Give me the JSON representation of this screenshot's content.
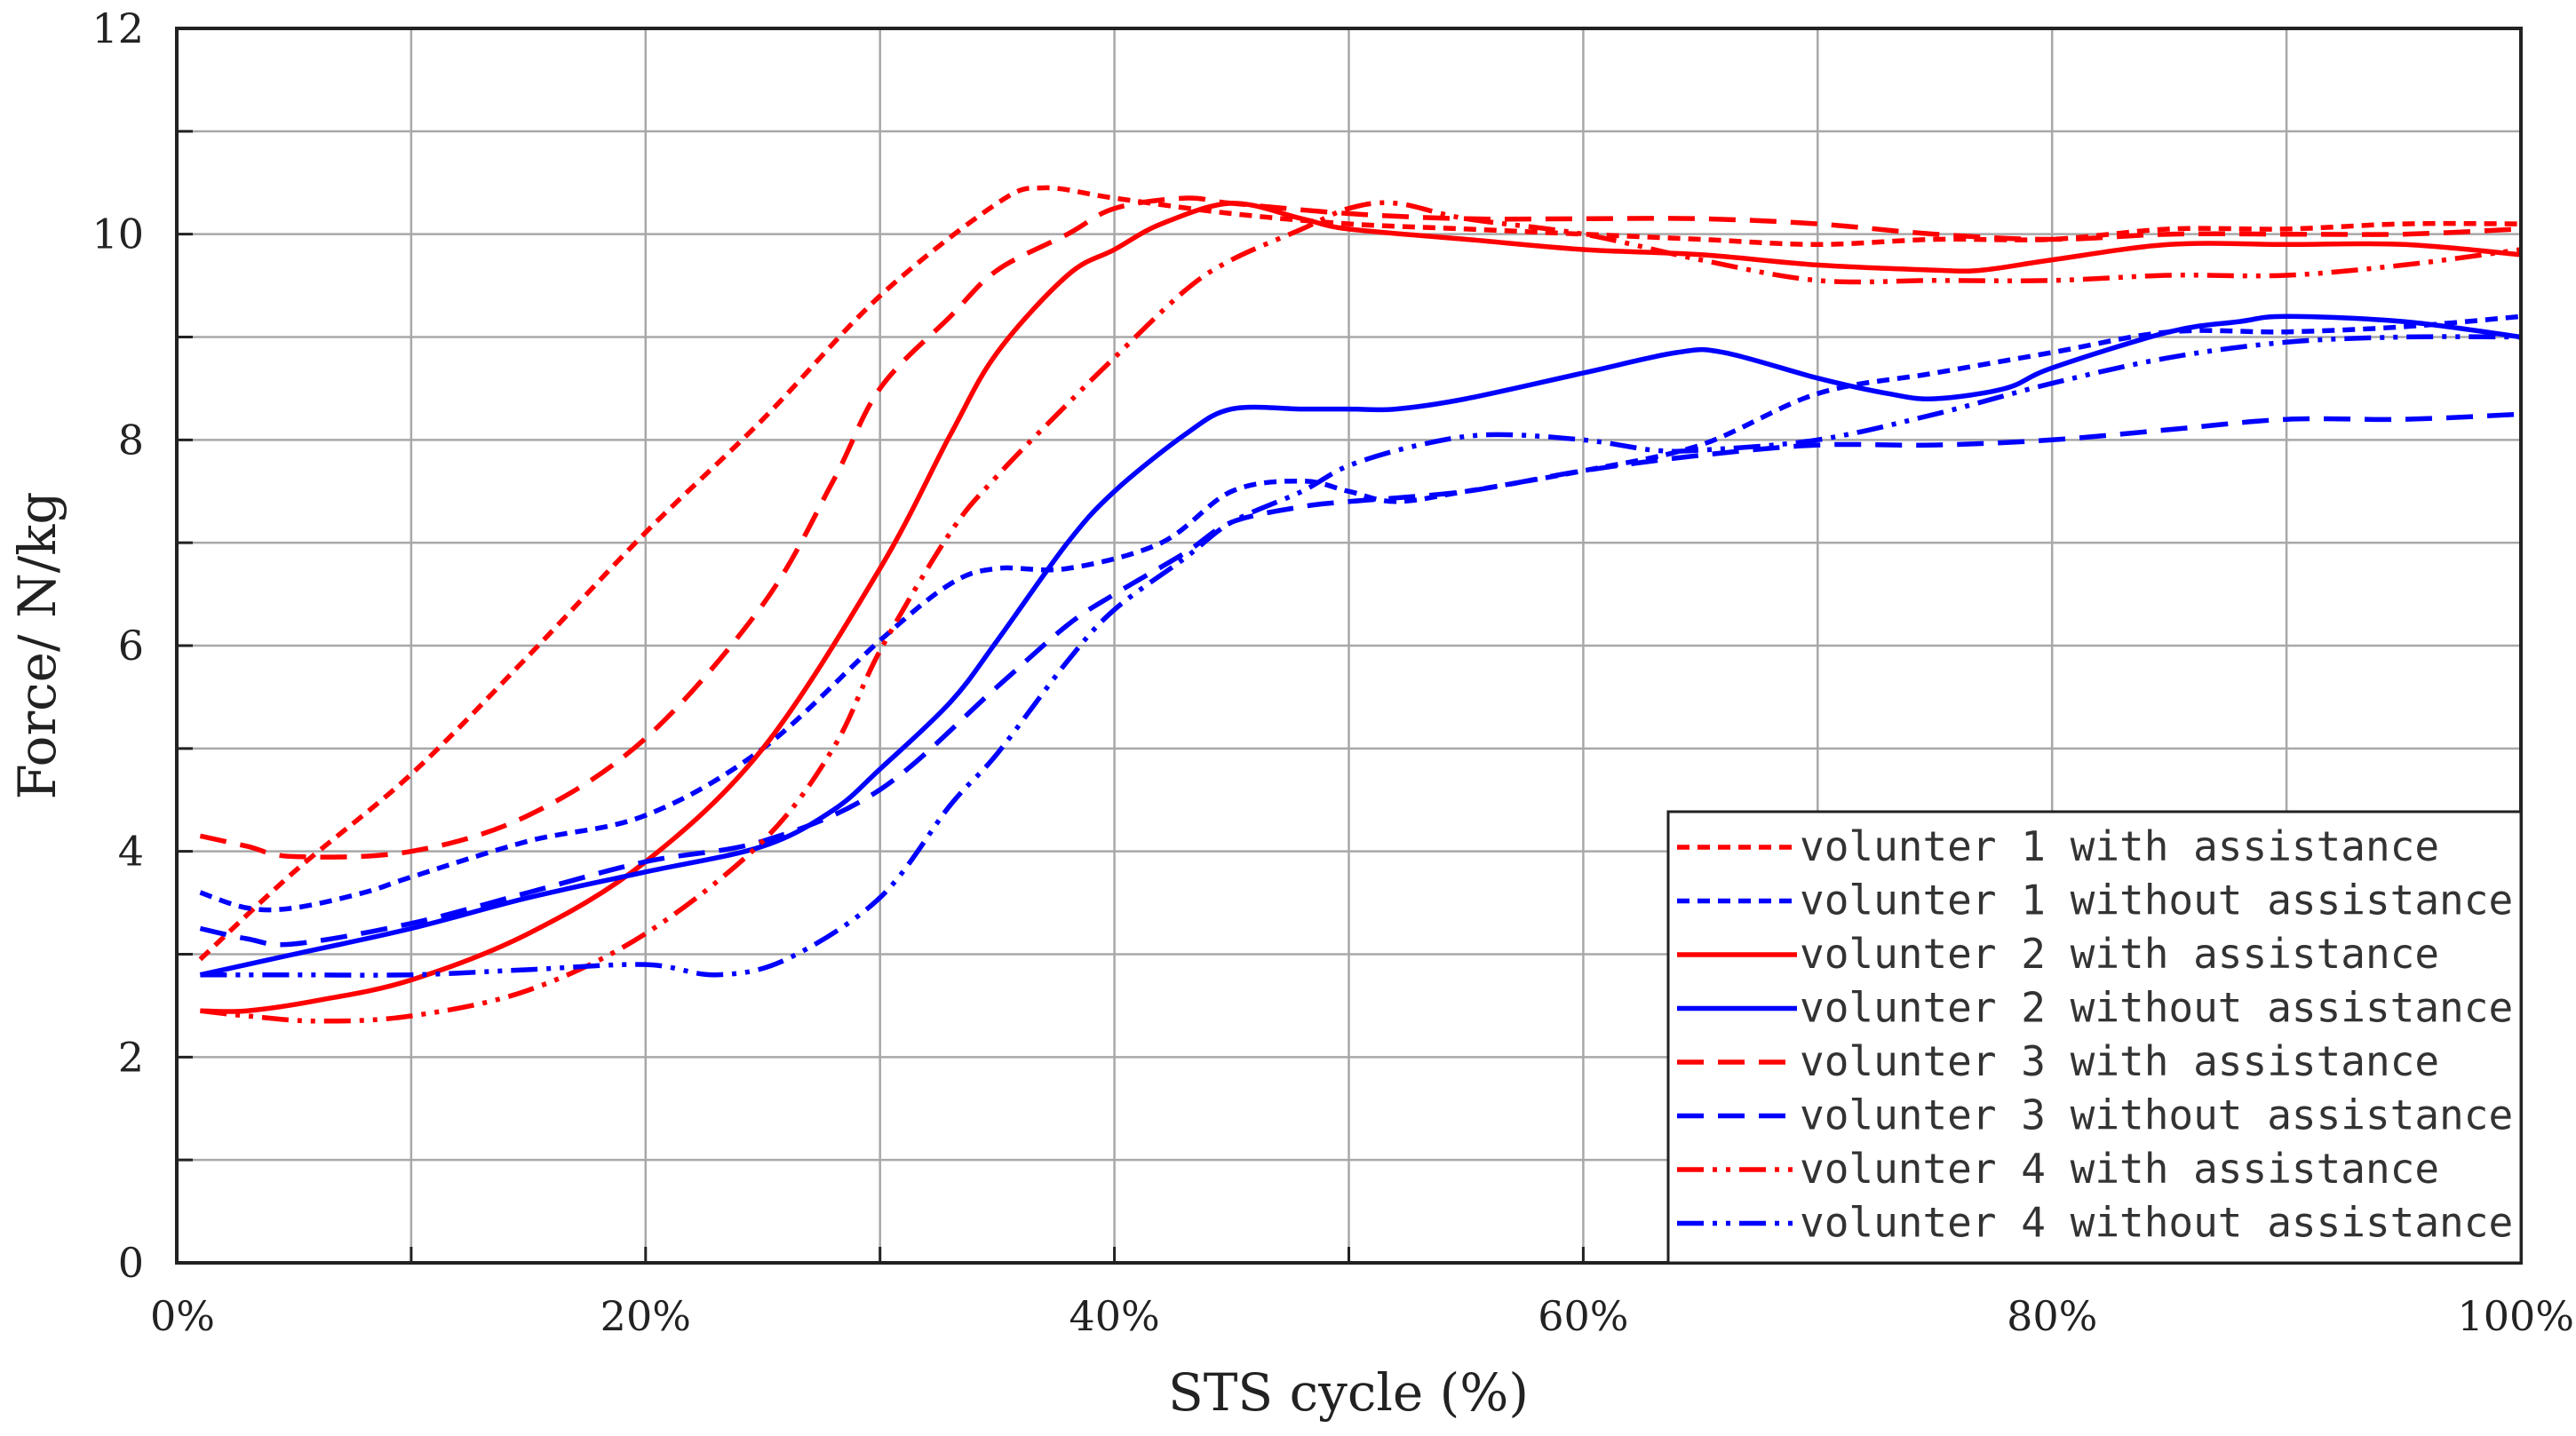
{
  "chart_data": {
    "type": "line",
    "title": "",
    "xlabel": "STS cycle (%)",
    "ylabel": "Force/ N/kg",
    "xlim": [
      0,
      100
    ],
    "ylim": [
      0,
      12
    ],
    "x_ticks": [
      "0%",
      "20%",
      "40%",
      "60%",
      "80%",
      "100%"
    ],
    "x_tick_values": [
      0,
      20,
      40,
      60,
      80,
      100
    ],
    "y_ticks": [
      "0",
      "2",
      "4",
      "6",
      "8",
      "10",
      "12"
    ],
    "y_tick_values": [
      0,
      2,
      4,
      6,
      8,
      10,
      12
    ],
    "grid": true,
    "legend_position": "bottom-right",
    "series": [
      {
        "name": "volunter 1 with assistance",
        "color": "#ff0000",
        "style": "short-dash",
        "points": [
          [
            1,
            2.95
          ],
          [
            5,
            3.8
          ],
          [
            10,
            4.75
          ],
          [
            15,
            5.9
          ],
          [
            20,
            7.1
          ],
          [
            25,
            8.2
          ],
          [
            30,
            9.4
          ],
          [
            35,
            10.3
          ],
          [
            37,
            10.45
          ],
          [
            40,
            10.35
          ],
          [
            45,
            10.2
          ],
          [
            50,
            10.1
          ],
          [
            55,
            10.05
          ],
          [
            60,
            10.0
          ],
          [
            65,
            9.95
          ],
          [
            70,
            9.9
          ],
          [
            75,
            9.95
          ],
          [
            80,
            9.95
          ],
          [
            85,
            10.05
          ],
          [
            90,
            10.05
          ],
          [
            95,
            10.1
          ],
          [
            100,
            10.1
          ]
        ]
      },
      {
        "name": "volunter 1 without assistance",
        "color": "#0000ff",
        "style": "short-dash",
        "points": [
          [
            1,
            3.6
          ],
          [
            3,
            3.45
          ],
          [
            5,
            3.45
          ],
          [
            8,
            3.6
          ],
          [
            10,
            3.75
          ],
          [
            15,
            4.1
          ],
          [
            20,
            4.35
          ],
          [
            25,
            5.0
          ],
          [
            30,
            6.05
          ],
          [
            33,
            6.6
          ],
          [
            35,
            6.75
          ],
          [
            38,
            6.75
          ],
          [
            42,
            7.0
          ],
          [
            45,
            7.5
          ],
          [
            48,
            7.6
          ],
          [
            50,
            7.5
          ],
          [
            52,
            7.4
          ],
          [
            55,
            7.5
          ],
          [
            60,
            7.7
          ],
          [
            65,
            7.95
          ],
          [
            70,
            8.45
          ],
          [
            75,
            8.65
          ],
          [
            80,
            8.85
          ],
          [
            85,
            9.05
          ],
          [
            90,
            9.05
          ],
          [
            95,
            9.1
          ],
          [
            100,
            9.2
          ]
        ]
      },
      {
        "name": "volunter 2 with assistance",
        "color": "#ff0000",
        "style": "solid",
        "points": [
          [
            1,
            2.45
          ],
          [
            3,
            2.45
          ],
          [
            6,
            2.55
          ],
          [
            10,
            2.75
          ],
          [
            15,
            3.2
          ],
          [
            20,
            3.9
          ],
          [
            25,
            5.0
          ],
          [
            30,
            6.75
          ],
          [
            33,
            8.05
          ],
          [
            35,
            8.85
          ],
          [
            38,
            9.6
          ],
          [
            40,
            9.85
          ],
          [
            42,
            10.1
          ],
          [
            45,
            10.3
          ],
          [
            48,
            10.15
          ],
          [
            50,
            10.05
          ],
          [
            55,
            9.95
          ],
          [
            60,
            9.85
          ],
          [
            65,
            9.8
          ],
          [
            70,
            9.7
          ],
          [
            75,
            9.65
          ],
          [
            77,
            9.65
          ],
          [
            80,
            9.75
          ],
          [
            85,
            9.9
          ],
          [
            90,
            9.9
          ],
          [
            95,
            9.9
          ],
          [
            100,
            9.8
          ]
        ]
      },
      {
        "name": "volunter 2 without assistance",
        "color": "#0000ff",
        "style": "solid",
        "points": [
          [
            1,
            2.8
          ],
          [
            5,
            3.0
          ],
          [
            10,
            3.25
          ],
          [
            15,
            3.55
          ],
          [
            20,
            3.8
          ],
          [
            25,
            4.05
          ],
          [
            28,
            4.4
          ],
          [
            30,
            4.8
          ],
          [
            33,
            5.45
          ],
          [
            35,
            6.05
          ],
          [
            38,
            7.0
          ],
          [
            40,
            7.5
          ],
          [
            43,
            8.05
          ],
          [
            45,
            8.3
          ],
          [
            48,
            8.3
          ],
          [
            50,
            8.3
          ],
          [
            52,
            8.3
          ],
          [
            55,
            8.4
          ],
          [
            60,
            8.65
          ],
          [
            64,
            8.85
          ],
          [
            66,
            8.85
          ],
          [
            70,
            8.6
          ],
          [
            73,
            8.45
          ],
          [
            75,
            8.4
          ],
          [
            78,
            8.5
          ],
          [
            80,
            8.7
          ],
          [
            85,
            9.05
          ],
          [
            88,
            9.15
          ],
          [
            90,
            9.2
          ],
          [
            95,
            9.15
          ],
          [
            100,
            9.0
          ]
        ]
      },
      {
        "name": "volunter 3 with assistance",
        "color": "#ff0000",
        "style": "long-dash",
        "points": [
          [
            1,
            4.15
          ],
          [
            3,
            4.05
          ],
          [
            5,
            3.95
          ],
          [
            10,
            4.0
          ],
          [
            15,
            4.35
          ],
          [
            20,
            5.1
          ],
          [
            25,
            6.4
          ],
          [
            28,
            7.6
          ],
          [
            30,
            8.5
          ],
          [
            33,
            9.2
          ],
          [
            35,
            9.65
          ],
          [
            38,
            10.0
          ],
          [
            40,
            10.25
          ],
          [
            43,
            10.35
          ],
          [
            45,
            10.3
          ],
          [
            50,
            10.2
          ],
          [
            55,
            10.15
          ],
          [
            60,
            10.15
          ],
          [
            65,
            10.15
          ],
          [
            70,
            10.1
          ],
          [
            75,
            10.0
          ],
          [
            80,
            9.95
          ],
          [
            85,
            10.0
          ],
          [
            90,
            10.0
          ],
          [
            95,
            10.0
          ],
          [
            100,
            10.05
          ]
        ]
      },
      {
        "name": "volunter 3 without assistance",
        "color": "#0000ff",
        "style": "long-dash",
        "points": [
          [
            1,
            3.25
          ],
          [
            3,
            3.15
          ],
          [
            5,
            3.1
          ],
          [
            10,
            3.3
          ],
          [
            15,
            3.6
          ],
          [
            20,
            3.9
          ],
          [
            25,
            4.1
          ],
          [
            30,
            4.6
          ],
          [
            35,
            5.6
          ],
          [
            38,
            6.2
          ],
          [
            40,
            6.5
          ],
          [
            43,
            6.9
          ],
          [
            45,
            7.2
          ],
          [
            48,
            7.35
          ],
          [
            50,
            7.4
          ],
          [
            55,
            7.5
          ],
          [
            60,
            7.7
          ],
          [
            65,
            7.85
          ],
          [
            70,
            7.95
          ],
          [
            75,
            7.95
          ],
          [
            80,
            8.0
          ],
          [
            85,
            8.1
          ],
          [
            90,
            8.2
          ],
          [
            95,
            8.2
          ],
          [
            100,
            8.25
          ]
        ]
      },
      {
        "name": "volunter 4 with assistance",
        "color": "#ff0000",
        "style": "dash-dot-dot",
        "points": [
          [
            1,
            2.45
          ],
          [
            3,
            2.4
          ],
          [
            6,
            2.35
          ],
          [
            10,
            2.4
          ],
          [
            15,
            2.65
          ],
          [
            20,
            3.2
          ],
          [
            25,
            4.1
          ],
          [
            28,
            5.0
          ],
          [
            30,
            5.95
          ],
          [
            33,
            7.1
          ],
          [
            35,
            7.65
          ],
          [
            38,
            8.35
          ],
          [
            40,
            8.8
          ],
          [
            43,
            9.45
          ],
          [
            45,
            9.75
          ],
          [
            48,
            10.05
          ],
          [
            50,
            10.25
          ],
          [
            52,
            10.3
          ],
          [
            55,
            10.15
          ],
          [
            60,
            10.0
          ],
          [
            65,
            9.75
          ],
          [
            70,
            9.55
          ],
          [
            75,
            9.55
          ],
          [
            80,
            9.55
          ],
          [
            85,
            9.6
          ],
          [
            90,
            9.6
          ],
          [
            95,
            9.7
          ],
          [
            100,
            9.85
          ]
        ]
      },
      {
        "name": "volunter 4 without assistance",
        "color": "#0000ff",
        "style": "dash-dot-dot",
        "points": [
          [
            1,
            2.8
          ],
          [
            5,
            2.8
          ],
          [
            10,
            2.8
          ],
          [
            15,
            2.85
          ],
          [
            20,
            2.9
          ],
          [
            23,
            2.8
          ],
          [
            26,
            2.95
          ],
          [
            30,
            3.55
          ],
          [
            33,
            4.45
          ],
          [
            35,
            4.95
          ],
          [
            38,
            5.85
          ],
          [
            40,
            6.35
          ],
          [
            43,
            6.85
          ],
          [
            45,
            7.2
          ],
          [
            48,
            7.5
          ],
          [
            50,
            7.75
          ],
          [
            53,
            7.95
          ],
          [
            56,
            8.05
          ],
          [
            60,
            8.0
          ],
          [
            63,
            7.9
          ],
          [
            65,
            7.9
          ],
          [
            70,
            8.0
          ],
          [
            75,
            8.25
          ],
          [
            80,
            8.55
          ],
          [
            85,
            8.8
          ],
          [
            90,
            8.95
          ],
          [
            95,
            9.0
          ],
          [
            100,
            9.0
          ]
        ]
      }
    ]
  }
}
